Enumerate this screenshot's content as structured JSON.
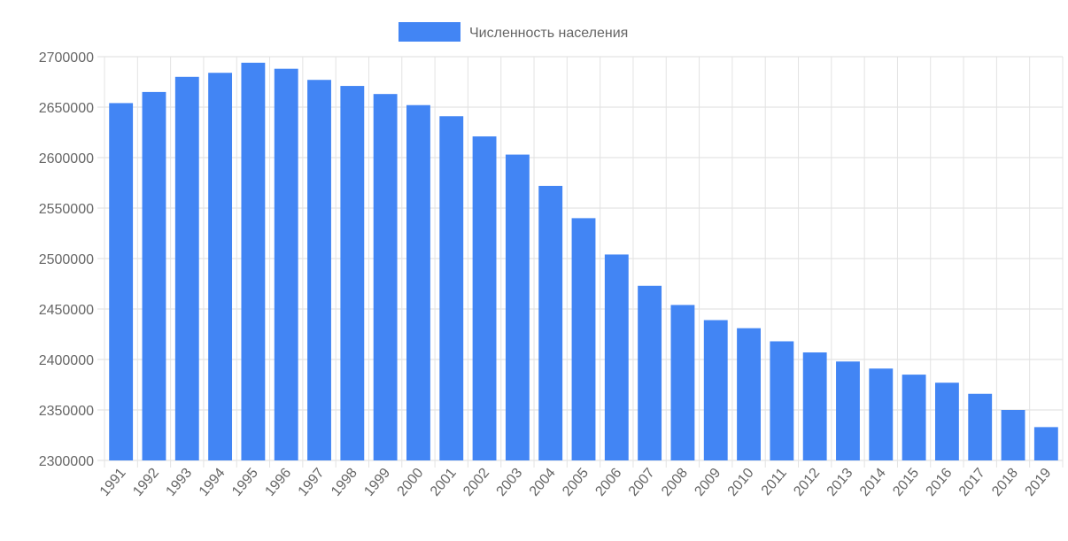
{
  "chart_data": {
    "type": "bar",
    "title": "",
    "xlabel": "",
    "ylabel": "",
    "ylim": [
      2300000,
      2700000
    ],
    "y_ticks": [
      "2700000",
      "2650000",
      "2600000",
      "2550000",
      "2500000",
      "2450000",
      "2400000",
      "2350000",
      "2300000"
    ],
    "grid": true,
    "legend_position": "top-center",
    "categories": [
      "1991",
      "1992",
      "1993",
      "1994",
      "1995",
      "1996",
      "1997",
      "1998",
      "1999",
      "2000",
      "2001",
      "2002",
      "2003",
      "2004",
      "2005",
      "2006",
      "2007",
      "2008",
      "2009",
      "2010",
      "2011",
      "2012",
      "2013",
      "2014",
      "2015",
      "2016",
      "2017",
      "2018",
      "2019"
    ],
    "series": [
      {
        "name": "Численность населения",
        "color": "#4285f4",
        "values": [
          2654000,
          2665000,
          2680000,
          2684000,
          2694000,
          2688000,
          2677000,
          2671000,
          2663000,
          2652000,
          2641000,
          2621000,
          2603000,
          2572000,
          2540000,
          2504000,
          2473000,
          2454000,
          2439000,
          2431000,
          2418000,
          2407000,
          2398000,
          2391000,
          2385000,
          2377000,
          2366000,
          2350000,
          2333000
        ]
      }
    ]
  }
}
